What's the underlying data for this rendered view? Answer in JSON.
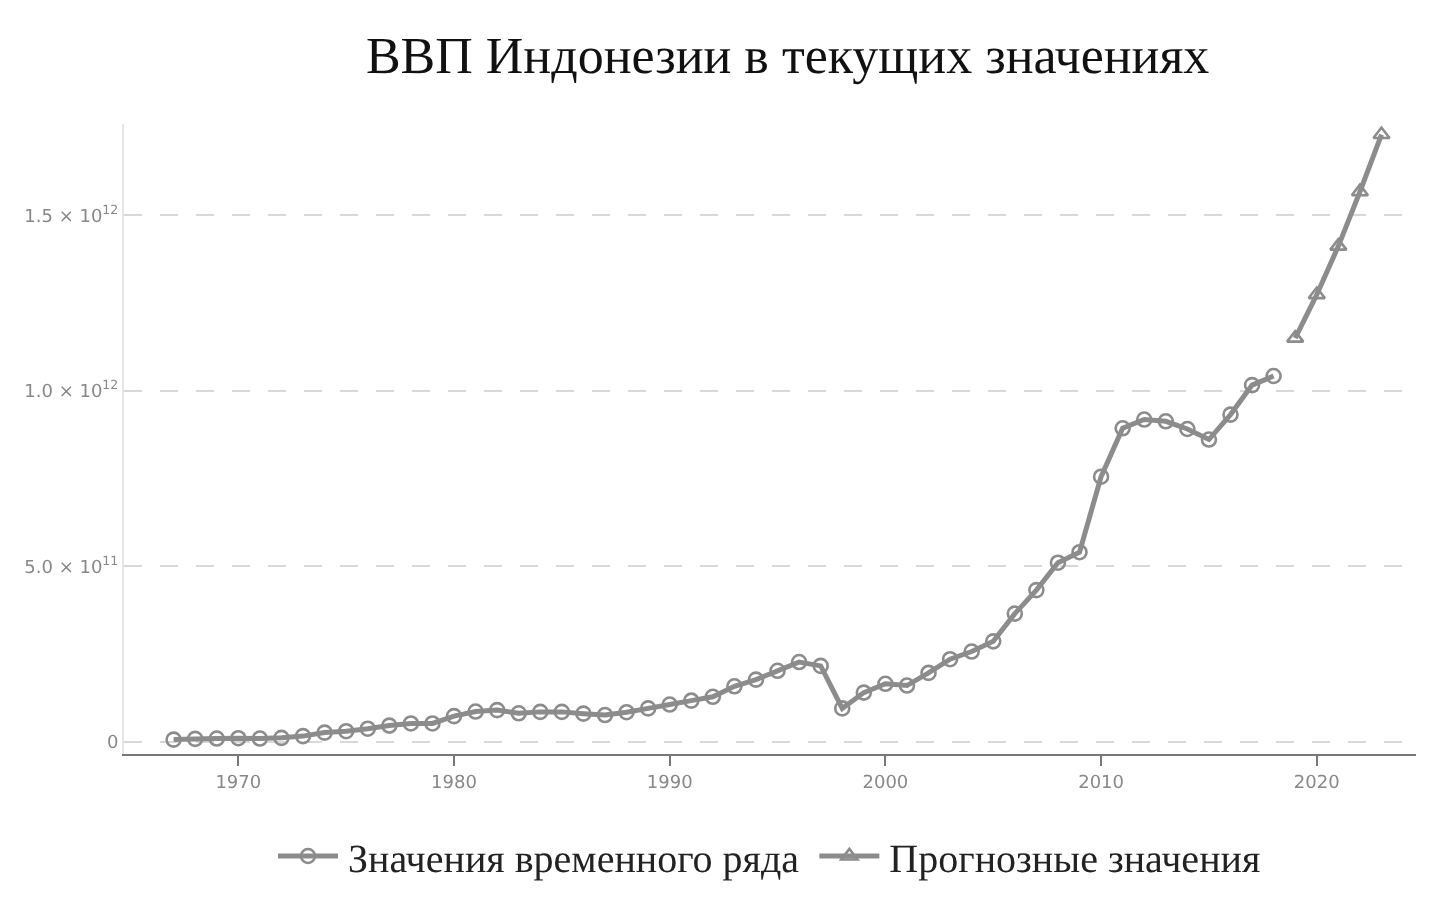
{
  "chart_data": {
    "type": "line",
    "title": "ВВП Индонезии в текущих значениях",
    "series": [
      {
        "name": "Значения временного ряда",
        "color": "#8c8c8c",
        "marker": "circle",
        "x": [
          1967,
          1968,
          1969,
          1970,
          1971,
          1972,
          1973,
          1974,
          1975,
          1976,
          1977,
          1978,
          1979,
          1980,
          1981,
          1982,
          1983,
          1984,
          1985,
          1986,
          1987,
          1988,
          1989,
          1990,
          1991,
          1992,
          1993,
          1994,
          1995,
          1996,
          1997,
          1998,
          1999,
          2000,
          2001,
          2002,
          2003,
          2004,
          2005,
          2006,
          2007,
          2008,
          2009,
          2010,
          2011,
          2012,
          2013,
          2014,
          2015,
          2016,
          2017,
          2018
        ],
        "values": [
          6000000000.0,
          8000000000.0,
          9000000000.0,
          10000000000.0,
          9000000000.0,
          11000000000.0,
          16000000000.0,
          26000000000.0,
          30000000000.0,
          37000000000.0,
          46000000000.0,
          52000000000.0,
          52000000000.0,
          73000000000.0,
          86000000000.0,
          90000000000.0,
          81000000000.0,
          85000000000.0,
          85000000000.0,
          80000000000.0,
          76000000000.0,
          84000000000.0,
          95000000000.0,
          106000000000.0,
          117000000000.0,
          128000000000.0,
          158000000000.0,
          177000000000.0,
          202000000000.0,
          227000000000.0,
          216000000000.0,
          95000000000.0,
          140000000000.0,
          165000000000.0,
          160000000000.0,
          196000000000.0,
          235000000000.0,
          257000000000.0,
          286000000000.0,
          365000000000.0,
          432000000000.0,
          510000000000.0,
          540000000000.0,
          755000000000.0,
          893000000000.0,
          918000000000.0,
          913000000000.0,
          891000000000.0,
          861000000000.0,
          932000000000.0,
          1016000000000.0,
          1042000000000.0
        ]
      },
      {
        "name": "Прогнозные значения",
        "color": "#8c8c8c",
        "marker": "triangle",
        "x": [
          2019,
          2020,
          2021,
          2022,
          2023
        ],
        "values": [
          1150000000000.0,
          1274000000000.0,
          1412000000000.0,
          1567000000000.0,
          1730000000000.0
        ]
      }
    ],
    "xlim": [
      1964.7,
      2024.6
    ],
    "xticks": [
      1970,
      1980,
      1990,
      2000,
      2010,
      2020
    ],
    "ylim": [
      -35000000000.0,
      1760000000000.0
    ],
    "yticks": [
      {
        "value": 0,
        "label": "0"
      },
      {
        "value": 500000000000.0,
        "label": "5.0 × 10$^{11}$"
      },
      {
        "value": 1000000000000.0,
        "label": "1.0 × 10$^{12}$"
      },
      {
        "value": 1500000000000.0,
        "label": "1.5 × 10$^{12}$"
      }
    ],
    "grid": "y",
    "legend": "bottom",
    "line_style": "solid"
  }
}
